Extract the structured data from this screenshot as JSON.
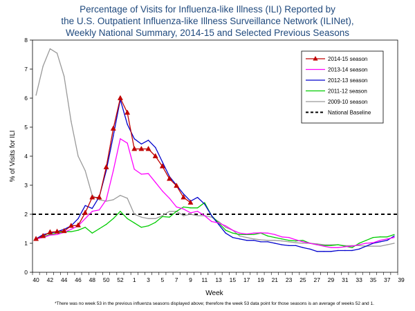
{
  "chart_data": {
    "type": "line",
    "title_lines": [
      "Percentage of Visits for Influenza-like Illness (ILI) Reported by",
      "the U.S. Outpatient Influenza-like Illness Surveillance Network (ILINet),",
      "Weekly National Summary, 2014-15 and Selected Previous Seasons"
    ],
    "xlabel": "Week",
    "ylabel": "% of Visits for ILI",
    "ylim": [
      0,
      8
    ],
    "y_ticks": [
      "0",
      "1",
      "2",
      "3",
      "4",
      "5",
      "6",
      "7",
      "8"
    ],
    "x_ticks": [
      "40",
      "42",
      "44",
      "46",
      "48",
      "50",
      "52",
      "1",
      "3",
      "5",
      "7",
      "9",
      "11",
      "13",
      "15",
      "17",
      "19",
      "21",
      "23",
      "25",
      "27",
      "29",
      "31",
      "33",
      "35",
      "37",
      "39"
    ],
    "weeks": [
      40,
      41,
      42,
      43,
      44,
      45,
      46,
      47,
      48,
      49,
      50,
      51,
      52,
      1,
      2,
      3,
      4,
      5,
      6,
      7,
      8,
      9,
      10,
      11,
      12,
      13,
      14,
      15,
      16,
      17,
      18,
      19,
      20,
      21,
      22,
      23,
      24,
      25,
      26,
      27,
      28,
      29,
      30,
      31,
      32,
      33,
      34,
      35,
      36,
      37,
      38,
      39
    ],
    "baseline": {
      "name": "National Baseline",
      "value": 2.0,
      "color": "#000000"
    },
    "series": [
      {
        "name": "2014-15 season",
        "color": "#c00000",
        "marker": "triangle",
        "values": [
          1.15,
          1.25,
          1.38,
          1.4,
          1.42,
          1.6,
          1.62,
          2.05,
          2.58,
          2.58,
          3.62,
          4.95,
          6.0,
          5.5,
          4.25,
          4.25,
          4.25,
          4.0,
          3.65,
          3.22,
          2.98,
          2.58,
          2.4
        ]
      },
      {
        "name": "2013-14 season",
        "color": "#ff00ff",
        "marker": "none",
        "values": [
          1.15,
          1.2,
          1.28,
          1.3,
          1.38,
          1.48,
          1.6,
          1.85,
          2.1,
          2.15,
          2.5,
          3.5,
          4.6,
          4.45,
          3.55,
          3.38,
          3.4,
          3.1,
          2.8,
          2.55,
          2.25,
          2.18,
          2.05,
          2.1,
          1.95,
          1.75,
          1.7,
          1.6,
          1.45,
          1.35,
          1.32,
          1.35,
          1.36,
          1.35,
          1.3,
          1.22,
          1.2,
          1.12,
          1.05,
          1.0,
          0.95,
          0.9,
          0.85,
          0.85,
          0.88,
          0.9,
          0.95,
          1.0,
          1.02,
          1.1,
          1.15,
          1.2
        ]
      },
      {
        "name": "2012-13 season",
        "color": "#0000cc",
        "marker": "none",
        "values": [
          1.15,
          1.3,
          1.35,
          1.4,
          1.48,
          1.6,
          1.85,
          2.3,
          2.2,
          2.6,
          3.5,
          4.7,
          5.95,
          5.1,
          4.6,
          4.42,
          4.55,
          4.3,
          3.8,
          3.3,
          3.0,
          2.7,
          2.45,
          2.58,
          2.35,
          1.95,
          1.65,
          1.35,
          1.2,
          1.15,
          1.1,
          1.1,
          1.05,
          1.05,
          1.0,
          0.95,
          0.92,
          0.92,
          0.85,
          0.8,
          0.72,
          0.72,
          0.72,
          0.75,
          0.75,
          0.75,
          0.8,
          0.9,
          1.0,
          1.05,
          1.1,
          1.25
        ]
      },
      {
        "name": "2011-12 season",
        "color": "#00cc00",
        "marker": "none",
        "values": [
          1.15,
          1.22,
          1.3,
          1.35,
          1.4,
          1.4,
          1.45,
          1.55,
          1.35,
          1.5,
          1.65,
          1.85,
          2.1,
          1.85,
          1.7,
          1.55,
          1.6,
          1.72,
          1.92,
          1.9,
          2.1,
          2.25,
          2.22,
          2.22,
          2.4,
          1.95,
          1.7,
          1.45,
          1.35,
          1.3,
          1.3,
          1.3,
          1.35,
          1.25,
          1.2,
          1.15,
          1.1,
          1.08,
          1.1,
          1.0,
          0.95,
          0.92,
          0.92,
          0.95,
          0.9,
          0.85,
          1.0,
          1.1,
          1.2,
          1.22,
          1.22,
          1.3
        ]
      },
      {
        "name": "2009-10 season",
        "color": "#999999",
        "marker": "none",
        "values": [
          6.1,
          7.1,
          7.7,
          7.55,
          6.75,
          5.2,
          4.0,
          3.5,
          2.65,
          2.5,
          2.45,
          2.5,
          2.65,
          2.55,
          2.0,
          1.9,
          1.85,
          1.85,
          1.95,
          2.1,
          2.1,
          1.95,
          2.0,
          1.95,
          1.95,
          1.9,
          1.75,
          1.55,
          1.45,
          1.25,
          1.2,
          1.15,
          1.12,
          1.1,
          1.1,
          1.08,
          1.05,
          1.02,
          1.0,
          1.0,
          0.98,
          0.95,
          0.95,
          0.95,
          0.92,
          0.92,
          0.92,
          0.9,
          0.9,
          0.9,
          0.95,
          1.0
        ]
      }
    ],
    "legend_position": "top-right",
    "footnote": "*There was no week 53 in the previous influenza seasons displayed above; therefore the week 53 data point for those seasons is an average of weeks 52 and 1."
  }
}
